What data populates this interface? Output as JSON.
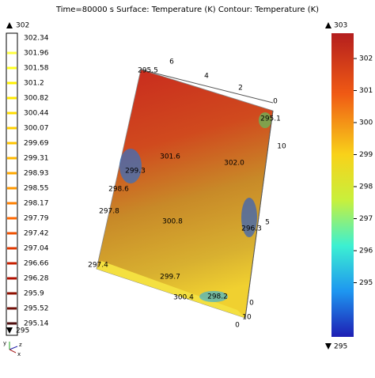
{
  "title": "Time=80000 s   Surface: Temperature (K)  Contour: Temperature (K)",
  "contour_legend": {
    "max": "302",
    "min": "295",
    "levels": [
      {
        "label": "302.34",
        "color": "#ffffff"
      },
      {
        "label": "301.96",
        "color": "#ffff40"
      },
      {
        "label": "301.58",
        "color": "#ffff20"
      },
      {
        "label": "301.2",
        "color": "#fff000"
      },
      {
        "label": "300.82",
        "color": "#ffe800"
      },
      {
        "label": "300.44",
        "color": "#ffdc00"
      },
      {
        "label": "300.07",
        "color": "#ffd000"
      },
      {
        "label": "299.69",
        "color": "#ffc400"
      },
      {
        "label": "299.31",
        "color": "#ffb800"
      },
      {
        "label": "298.93",
        "color": "#ffa800"
      },
      {
        "label": "298.55",
        "color": "#ff9800"
      },
      {
        "label": "298.17",
        "color": "#ff8000"
      },
      {
        "label": "297.79",
        "color": "#ff6800"
      },
      {
        "label": "297.42",
        "color": "#f05000"
      },
      {
        "label": "297.04",
        "color": "#e03800"
      },
      {
        "label": "296.66",
        "color": "#c82000"
      },
      {
        "label": "296.28",
        "color": "#b01000"
      },
      {
        "label": "295.9",
        "color": "#901000"
      },
      {
        "label": "295.52",
        "color": "#701008"
      },
      {
        "label": "295.14",
        "color": "#501010"
      }
    ]
  },
  "surface_legend": {
    "max": "303",
    "min": "295",
    "ticks": [
      "302",
      "301",
      "300",
      "299",
      "298",
      "297",
      "296",
      "295"
    ]
  },
  "contour_labels": [
    "295.5",
    "295.1",
    "301.6",
    "302.0",
    "299.3",
    "298.6",
    "297.8",
    "300.8",
    "296.3",
    "297.4",
    "299.7",
    "300.4",
    "298.2"
  ],
  "axis_ticks": {
    "top": [
      "6",
      "4",
      "2",
      "0"
    ],
    "right": [
      "10",
      "5",
      "0"
    ],
    "bottom": [
      "10",
      "0"
    ]
  },
  "triad": [
    "y",
    "z",
    "x"
  ]
}
